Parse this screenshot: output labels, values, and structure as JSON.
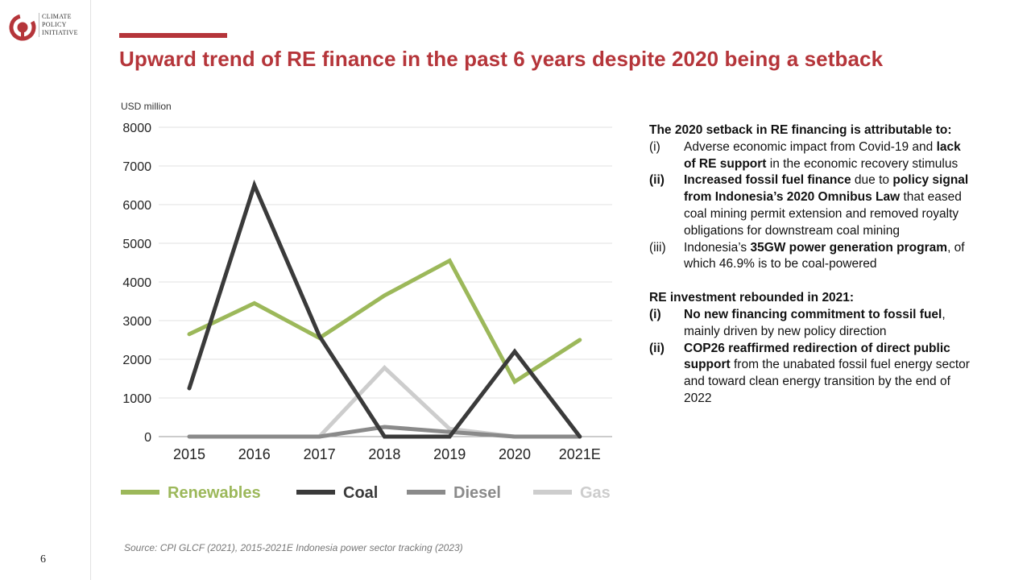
{
  "header": {
    "logo_lines": [
      "CLIMATE",
      "POLICY",
      "INITIATIVE"
    ],
    "title": "Upward trend of RE finance in the past 6 years despite 2020 being a setback"
  },
  "page_number": "6",
  "source": "Source:  CPI GLCF (2021),  2015-2021E  Indonesia power sector tracking (2023)",
  "colors": {
    "accent": "#b5353a",
    "renewables": "#9cb85a",
    "coal": "#3a3a3a",
    "diesel": "#8a8a8a",
    "gas": "#cdcdcd"
  },
  "chart_data": {
    "type": "line",
    "ylabel": "USD million",
    "ylim": [
      0,
      8000
    ],
    "yticks": [
      0,
      1000,
      2000,
      3000,
      4000,
      5000,
      6000,
      7000,
      8000
    ],
    "categories": [
      "2015",
      "2016",
      "2017",
      "2018",
      "2019",
      "2020",
      "2021E"
    ],
    "grid": true,
    "legend_position": "bottom",
    "series": [
      {
        "name": "Renewables",
        "color": "#9cb85a",
        "values": [
          2650,
          3450,
          2550,
          3650,
          4550,
          1420,
          2500
        ]
      },
      {
        "name": "Coal",
        "color": "#3a3a3a",
        "values": [
          1250,
          6500,
          2600,
          0,
          0,
          2200,
          0
        ]
      },
      {
        "name": "Diesel",
        "color": "#8a8a8a",
        "values": [
          0,
          0,
          0,
          250,
          120,
          0,
          0
        ]
      },
      {
        "name": "Gas",
        "color": "#cdcdcd",
        "values": [
          0,
          0,
          0,
          1780,
          200,
          0,
          0
        ]
      }
    ]
  },
  "panel": {
    "setback_heading": "The 2020 setback in RE financing is attributable to:",
    "setback_items": [
      {
        "num": "(i)",
        "parts": [
          {
            "t": "Adverse economic impact from Covid-19 and ",
            "b": false
          },
          {
            "t": "lack of RE support",
            "b": true
          },
          {
            "t": " in the economic recovery stimulus",
            "b": false
          }
        ]
      },
      {
        "num": "(ii)",
        "num_bold": true,
        "parts": [
          {
            "t": "Increased fossil fuel finance",
            "b": true
          },
          {
            "t": " due to ",
            "b": false
          },
          {
            "t": "policy signal from Indonesia’s 2020 Omnibus Law",
            "b": true
          },
          {
            "t": " that eased coal mining  permit extension and removed royalty obligations for downstream coal mining",
            "b": false
          }
        ]
      },
      {
        "num": "(iii)",
        "parts": [
          {
            "t": "Indonesia’s ",
            "b": false
          },
          {
            "t": "35GW power generation program",
            "b": true
          },
          {
            "t": ",  of which 46.9% is to be coal-powered",
            "b": false
          }
        ]
      }
    ],
    "rebound_heading": "RE investment rebounded in 2021:",
    "rebound_items": [
      {
        "num": "(i)",
        "num_bold": true,
        "parts": [
          {
            "t": "No new financing commitment to fossil fuel",
            "b": true
          },
          {
            "t": ", mainly driven by new policy direction",
            "b": false
          }
        ]
      },
      {
        "num": "(ii)",
        "num_bold": true,
        "parts": [
          {
            "t": "COP26 reaffirmed redirection  of direct public support",
            "b": true
          },
          {
            "t": " from the unabated fossil fuel energy sector and toward clean energy transition by the end of 2022",
            "b": false
          }
        ]
      }
    ]
  }
}
